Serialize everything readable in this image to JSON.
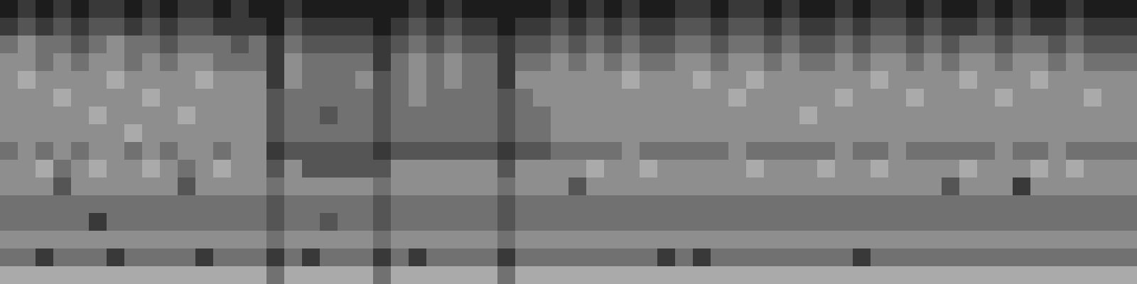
{
  "chart_data": {
    "type": "heatmap",
    "tick_labels": false,
    "zlim": [
      0,
      9
    ],
    "cells": [
      [
        1,
        2,
        1,
        2,
        1,
        2,
        2,
        1,
        2,
        1,
        2,
        2,
        1,
        2,
        1,
        1,
        2,
        1,
        1,
        1,
        1,
        1,
        1,
        2,
        1,
        2,
        1,
        1,
        1,
        1,
        1,
        2,
        1,
        2,
        1,
        2,
        1,
        1,
        2,
        2,
        1,
        2,
        2,
        1,
        2,
        1,
        1,
        2,
        1,
        2,
        2,
        1,
        2,
        1,
        1,
        2,
        1,
        2,
        1,
        1,
        2,
        1,
        1,
        1
      ],
      [
        2,
        3,
        2,
        3,
        2,
        3,
        3,
        2,
        3,
        2,
        3,
        3,
        2,
        2,
        2,
        1,
        3,
        2,
        2,
        2,
        2,
        1,
        2,
        3,
        2,
        3,
        2,
        2,
        1,
        2,
        2,
        3,
        2,
        3,
        2,
        3,
        2,
        2,
        3,
        3,
        2,
        3,
        3,
        2,
        3,
        2,
        2,
        3,
        2,
        3,
        3,
        2,
        3,
        2,
        2,
        3,
        2,
        3,
        2,
        2,
        3,
        2,
        2,
        2
      ],
      [
        4,
        5,
        4,
        4,
        3,
        4,
        5,
        4,
        4,
        3,
        4,
        4,
        4,
        3,
        4,
        2,
        4,
        3,
        3,
        3,
        3,
        2,
        3,
        4,
        3,
        4,
        3,
        3,
        2,
        3,
        3,
        4,
        3,
        4,
        3,
        4,
        3,
        3,
        4,
        4,
        3,
        4,
        4,
        3,
        4,
        3,
        3,
        4,
        3,
        4,
        4,
        3,
        4,
        3,
        4,
        4,
        3,
        4,
        4,
        3,
        4,
        3,
        3,
        3
      ],
      [
        5,
        5,
        4,
        5,
        4,
        5,
        5,
        4,
        5,
        4,
        5,
        5,
        4,
        4,
        4,
        2,
        5,
        4,
        4,
        4,
        4,
        2,
        4,
        5,
        4,
        5,
        4,
        4,
        2,
        4,
        4,
        5,
        4,
        5,
        4,
        5,
        4,
        4,
        5,
        5,
        4,
        5,
        5,
        4,
        5,
        4,
        4,
        5,
        4,
        5,
        5,
        4,
        5,
        4,
        5,
        5,
        4,
        5,
        5,
        4,
        5,
        4,
        4,
        4
      ],
      [
        5,
        6,
        5,
        5,
        5,
        5,
        6,
        5,
        5,
        5,
        5,
        6,
        5,
        5,
        5,
        2,
        5,
        4,
        4,
        4,
        5,
        3,
        4,
        5,
        4,
        5,
        4,
        4,
        2,
        5,
        5,
        5,
        5,
        5,
        5,
        6,
        5,
        5,
        5,
        6,
        5,
        5,
        6,
        5,
        5,
        5,
        5,
        5,
        5,
        6,
        5,
        5,
        5,
        5,
        6,
        5,
        5,
        5,
        6,
        5,
        5,
        5,
        5,
        5
      ],
      [
        5,
        5,
        5,
        6,
        5,
        5,
        5,
        5,
        6,
        5,
        5,
        5,
        5,
        5,
        5,
        3,
        4,
        4,
        4,
        4,
        4,
        3,
        4,
        5,
        4,
        4,
        4,
        4,
        3,
        4,
        5,
        5,
        5,
        5,
        5,
        5,
        5,
        5,
        5,
        5,
        5,
        6,
        5,
        5,
        5,
        5,
        5,
        6,
        5,
        5,
        5,
        6,
        5,
        5,
        5,
        5,
        6,
        5,
        5,
        5,
        5,
        6,
        5,
        5
      ],
      [
        5,
        5,
        5,
        5,
        5,
        6,
        5,
        5,
        5,
        5,
        6,
        5,
        5,
        5,
        5,
        3,
        4,
        4,
        3,
        4,
        4,
        3,
        4,
        4,
        4,
        4,
        4,
        4,
        3,
        4,
        4,
        5,
        5,
        5,
        5,
        5,
        5,
        5,
        5,
        5,
        5,
        5,
        5,
        5,
        5,
        6,
        5,
        5,
        5,
        5,
        5,
        5,
        5,
        5,
        5,
        5,
        5,
        5,
        5,
        5,
        5,
        5,
        5,
        5
      ],
      [
        5,
        5,
        5,
        5,
        5,
        5,
        5,
        6,
        5,
        5,
        5,
        5,
        5,
        5,
        5,
        3,
        4,
        4,
        4,
        4,
        4,
        3,
        4,
        4,
        4,
        4,
        4,
        4,
        3,
        4,
        4,
        5,
        5,
        5,
        5,
        5,
        5,
        5,
        5,
        5,
        5,
        5,
        5,
        5,
        5,
        5,
        5,
        5,
        5,
        5,
        5,
        5,
        5,
        5,
        5,
        5,
        5,
        5,
        5,
        5,
        5,
        5,
        5,
        5
      ],
      [
        4,
        5,
        4,
        5,
        4,
        5,
        5,
        4,
        5,
        4,
        5,
        5,
        4,
        5,
        5,
        2,
        3,
        3,
        3,
        3,
        3,
        2,
        3,
        3,
        3,
        3,
        3,
        3,
        2,
        3,
        3,
        4,
        4,
        4,
        4,
        5,
        4,
        4,
        4,
        4,
        4,
        5,
        4,
        4,
        4,
        4,
        4,
        5,
        4,
        4,
        5,
        4,
        4,
        4,
        4,
        4,
        5,
        4,
        4,
        5,
        4,
        4,
        4,
        4
      ],
      [
        5,
        5,
        6,
        4,
        5,
        6,
        5,
        5,
        6,
        5,
        4,
        5,
        6,
        5,
        5,
        3,
        5,
        3,
        3,
        3,
        3,
        3,
        5,
        5,
        5,
        5,
        5,
        5,
        3,
        5,
        5,
        5,
        5,
        6,
        5,
        5,
        6,
        5,
        5,
        5,
        5,
        5,
        6,
        5,
        5,
        5,
        6,
        5,
        5,
        6,
        5,
        5,
        5,
        5,
        6,
        5,
        5,
        5,
        6,
        5,
        6,
        5,
        5,
        5
      ],
      [
        5,
        5,
        5,
        3,
        5,
        5,
        5,
        5,
        5,
        5,
        3,
        5,
        5,
        5,
        5,
        4,
        5,
        5,
        5,
        5,
        5,
        4,
        5,
        5,
        5,
        5,
        5,
        5,
        4,
        5,
        5,
        5,
        3,
        5,
        5,
        5,
        5,
        5,
        5,
        5,
        5,
        5,
        5,
        5,
        5,
        5,
        5,
        5,
        5,
        5,
        5,
        5,
        5,
        3,
        5,
        5,
        5,
        2,
        5,
        5,
        5,
        5,
        5,
        5
      ],
      [
        4,
        4,
        4,
        4,
        4,
        4,
        4,
        4,
        4,
        4,
        4,
        4,
        4,
        4,
        4,
        3,
        4,
        4,
        4,
        4,
        4,
        3,
        4,
        4,
        4,
        4,
        4,
        4,
        3,
        4,
        4,
        4,
        4,
        4,
        4,
        4,
        4,
        4,
        4,
        4,
        4,
        4,
        4,
        4,
        4,
        4,
        4,
        4,
        4,
        4,
        4,
        4,
        4,
        4,
        4,
        4,
        4,
        4,
        4,
        4,
        4,
        4,
        4,
        4
      ],
      [
        4,
        4,
        4,
        4,
        4,
        2,
        4,
        4,
        4,
        4,
        4,
        4,
        4,
        4,
        4,
        3,
        4,
        4,
        3,
        4,
        4,
        3,
        4,
        4,
        4,
        4,
        4,
        4,
        3,
        4,
        4,
        4,
        4,
        4,
        4,
        4,
        4,
        4,
        4,
        4,
        4,
        4,
        4,
        4,
        4,
        4,
        4,
        4,
        4,
        4,
        4,
        4,
        4,
        4,
        4,
        4,
        4,
        4,
        4,
        4,
        4,
        4,
        4,
        4
      ],
      [
        5,
        5,
        5,
        5,
        5,
        5,
        5,
        5,
        5,
        5,
        5,
        5,
        5,
        5,
        5,
        4,
        5,
        5,
        5,
        5,
        5,
        4,
        5,
        5,
        5,
        5,
        5,
        5,
        4,
        5,
        5,
        5,
        5,
        5,
        5,
        5,
        5,
        5,
        5,
        5,
        5,
        5,
        5,
        5,
        5,
        5,
        5,
        5,
        5,
        5,
        5,
        5,
        5,
        5,
        5,
        5,
        5,
        5,
        5,
        5,
        5,
        5,
        5,
        5
      ],
      [
        4,
        4,
        2,
        4,
        4,
        4,
        2,
        4,
        4,
        4,
        4,
        2,
        4,
        4,
        4,
        2,
        4,
        2,
        4,
        4,
        4,
        2,
        4,
        2,
        4,
        4,
        4,
        4,
        2,
        4,
        4,
        4,
        4,
        4,
        4,
        4,
        4,
        2,
        4,
        2,
        4,
        4,
        4,
        4,
        4,
        4,
        4,
        4,
        2,
        4,
        4,
        4,
        4,
        4,
        4,
        4,
        4,
        4,
        4,
        4,
        4,
        4,
        4,
        4
      ],
      [
        6,
        6,
        6,
        6,
        6,
        6,
        6,
        6,
        6,
        6,
        6,
        6,
        6,
        6,
        6,
        4,
        6,
        6,
        6,
        6,
        6,
        4,
        6,
        6,
        6,
        6,
        6,
        6,
        4,
        6,
        6,
        6,
        6,
        6,
        6,
        6,
        6,
        6,
        6,
        6,
        6,
        6,
        6,
        6,
        6,
        6,
        6,
        6,
        6,
        6,
        6,
        6,
        6,
        6,
        6,
        6,
        6,
        6,
        6,
        6,
        6,
        6,
        6,
        6
      ]
    ]
  }
}
